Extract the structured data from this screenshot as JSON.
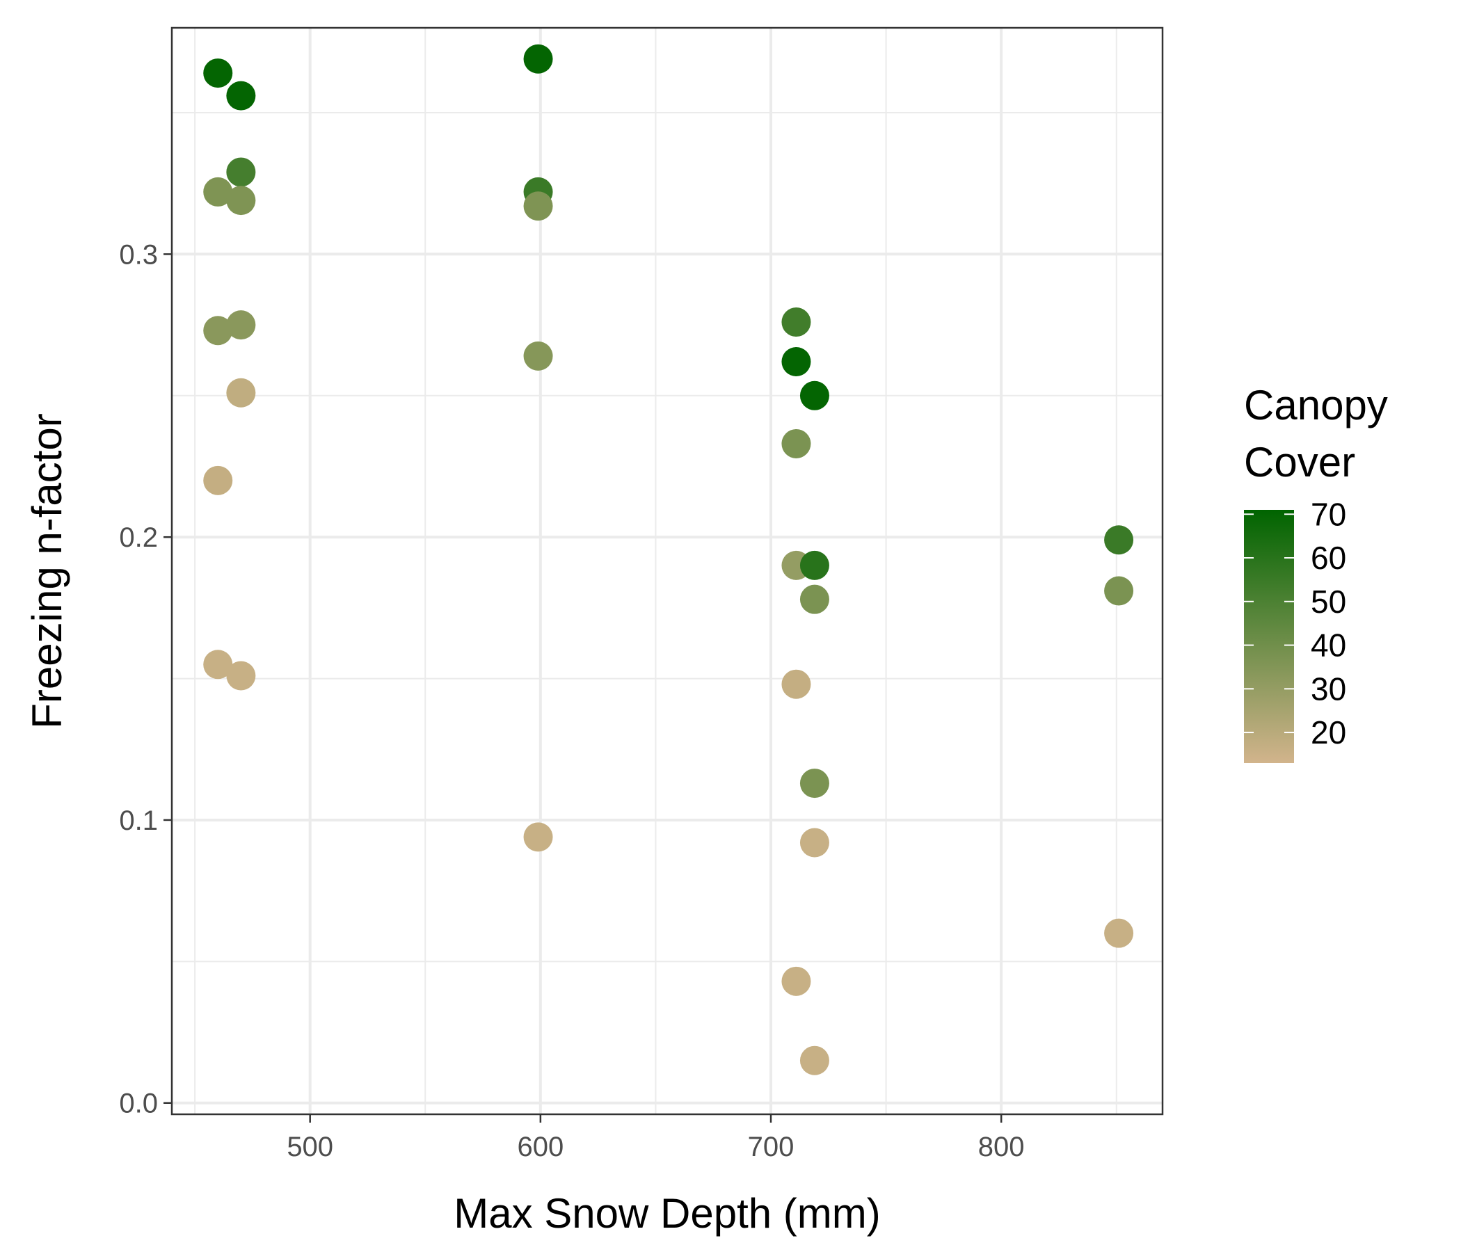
{
  "chart_data": {
    "type": "scatter",
    "xlabel": "Max Snow Depth (mm)",
    "ylabel": "Freezing n-factor",
    "xlim": [
      440,
      870
    ],
    "ylim": [
      -0.004,
      0.38
    ],
    "x_ticks": [
      500,
      600,
      700,
      800
    ],
    "x_tick_labels": [
      "500",
      "600",
      "700",
      "800"
    ],
    "y_ticks": [
      0.0,
      0.1,
      0.2,
      0.3
    ],
    "y_tick_labels": [
      "0.0",
      "0.1",
      "0.2",
      "0.3"
    ],
    "grid": true,
    "legend": {
      "title_lines": [
        "Canopy",
        "Cover"
      ],
      "placement": "right",
      "min": 13,
      "max": 71,
      "ticks": [
        20,
        30,
        40,
        50,
        60,
        70
      ],
      "tick_labels": [
        "20",
        "30",
        "40",
        "50",
        "60",
        "70"
      ],
      "color_low": "#D2B48C",
      "color_high": "#006400"
    },
    "points": [
      {
        "x": 460,
        "y": 0.364,
        "canopy": 70
      },
      {
        "x": 470,
        "y": 0.356,
        "canopy": 70
      },
      {
        "x": 470,
        "y": 0.329,
        "canopy": 52
      },
      {
        "x": 460,
        "y": 0.322,
        "canopy": 36
      },
      {
        "x": 470,
        "y": 0.319,
        "canopy": 36
      },
      {
        "x": 460,
        "y": 0.273,
        "canopy": 33
      },
      {
        "x": 470,
        "y": 0.275,
        "canopy": 33
      },
      {
        "x": 470,
        "y": 0.251,
        "canopy": 18
      },
      {
        "x": 460,
        "y": 0.22,
        "canopy": 17
      },
      {
        "x": 460,
        "y": 0.155,
        "canopy": 16
      },
      {
        "x": 470,
        "y": 0.151,
        "canopy": 16
      },
      {
        "x": 599,
        "y": 0.369,
        "canopy": 70
      },
      {
        "x": 599,
        "y": 0.322,
        "canopy": 55
      },
      {
        "x": 599,
        "y": 0.317,
        "canopy": 36
      },
      {
        "x": 599,
        "y": 0.264,
        "canopy": 34
      },
      {
        "x": 599,
        "y": 0.094,
        "canopy": 16
      },
      {
        "x": 711,
        "y": 0.276,
        "canopy": 53
      },
      {
        "x": 711,
        "y": 0.262,
        "canopy": 70
      },
      {
        "x": 719,
        "y": 0.25,
        "canopy": 70
      },
      {
        "x": 711,
        "y": 0.233,
        "canopy": 37
      },
      {
        "x": 711,
        "y": 0.19,
        "canopy": 30
      },
      {
        "x": 719,
        "y": 0.19,
        "canopy": 60
      },
      {
        "x": 719,
        "y": 0.178,
        "canopy": 37
      },
      {
        "x": 711,
        "y": 0.148,
        "canopy": 17
      },
      {
        "x": 719,
        "y": 0.113,
        "canopy": 37
      },
      {
        "x": 719,
        "y": 0.092,
        "canopy": 16
      },
      {
        "x": 711,
        "y": 0.043,
        "canopy": 16
      },
      {
        "x": 719,
        "y": 0.015,
        "canopy": 16
      },
      {
        "x": 851,
        "y": 0.199,
        "canopy": 55
      },
      {
        "x": 851,
        "y": 0.181,
        "canopy": 37
      },
      {
        "x": 851,
        "y": 0.06,
        "canopy": 16
      }
    ]
  }
}
